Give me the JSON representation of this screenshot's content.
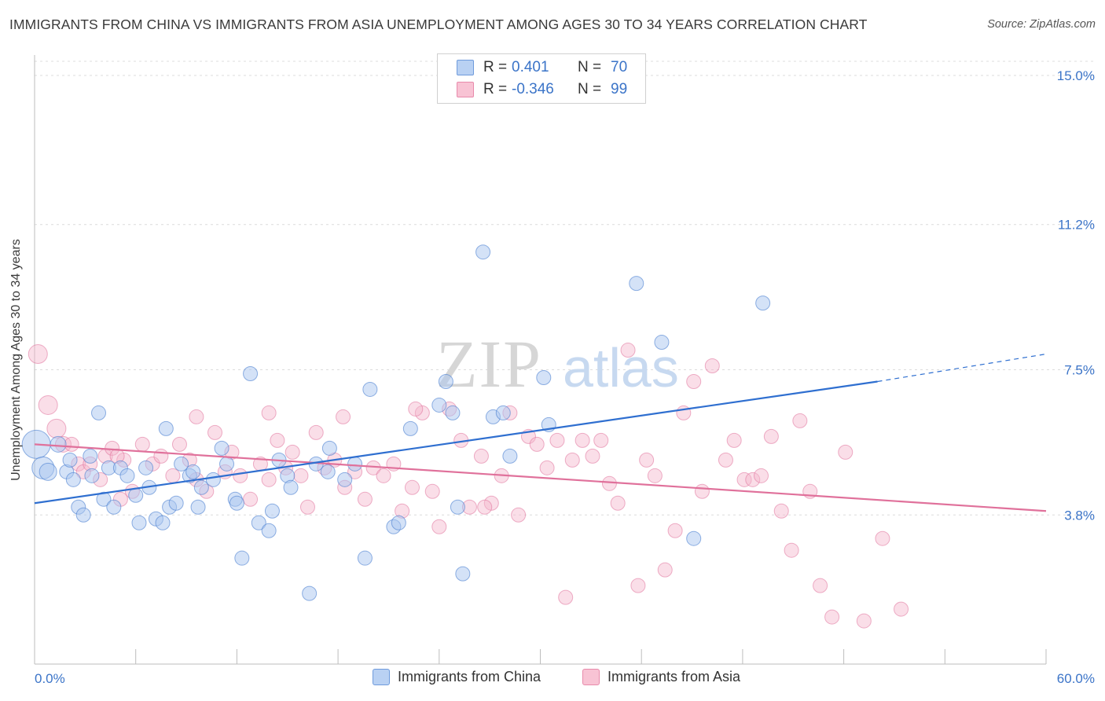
{
  "title": "IMMIGRANTS FROM CHINA VS IMMIGRANTS FROM ASIA UNEMPLOYMENT AMONG AGES 30 TO 34 YEARS CORRELATION CHART",
  "source": "Source: ZipAtlas.com",
  "watermark": {
    "zip": "ZIP",
    "atlas": "atlas"
  },
  "legend": {
    "china": {
      "r_label": "R =",
      "r_value": "0.401",
      "n_label": "N =",
      "n_value": "70"
    },
    "asia": {
      "r_label": "R =",
      "r_value": "-0.346",
      "n_label": "N =",
      "n_value": "99"
    }
  },
  "chart_data": {
    "type": "scatter",
    "title": "IMMIGRANTS FROM CHINA VS IMMIGRANTS FROM ASIA UNEMPLOYMENT AMONG AGES 30 TO 34 YEARS CORRELATION CHART",
    "xlabel": "",
    "ylabel": "Unemployment Among Ages 30 to 34 years",
    "xlim": [
      0,
      60
    ],
    "ylim": [
      0,
      15.4
    ],
    "x_tick_labels": [
      "0.0%",
      "60.0%"
    ],
    "y_ticks": [
      3.8,
      7.5,
      11.2,
      15.0
    ],
    "y_tick_labels": [
      "3.8%",
      "7.5%",
      "11.2%",
      "15.0%"
    ],
    "colors": {
      "china": "#4a7fd0",
      "china_fill": "#a9c6ef",
      "asia": "#e0719b",
      "asia_fill": "#f5b6cb"
    },
    "series": [
      {
        "name": "Immigrants from China",
        "r": 0.401,
        "n": 70,
        "trend": {
          "x0": 0,
          "y0": 4.1,
          "x1": 50,
          "y1": 7.2,
          "dash_x1": 60,
          "dash_y1": 7.9
        },
        "points": [
          [
            0.1,
            5.6,
            18
          ],
          [
            0.5,
            5.0,
            14
          ],
          [
            0.8,
            4.9,
            11
          ],
          [
            1.4,
            5.6,
            10
          ],
          [
            1.9,
            4.9,
            9
          ],
          [
            2.1,
            5.2,
            9
          ],
          [
            2.3,
            4.7,
            9
          ],
          [
            2.6,
            4.0,
            9
          ],
          [
            3.8,
            6.4,
            9
          ],
          [
            2.9,
            3.8,
            9
          ],
          [
            3.4,
            4.8,
            9
          ],
          [
            4.1,
            4.2,
            9
          ],
          [
            4.4,
            5.0,
            9
          ],
          [
            4.7,
            4.0,
            9
          ],
          [
            5.1,
            5.0,
            9
          ],
          [
            5.5,
            4.8,
            9
          ],
          [
            6.0,
            4.3,
            9
          ],
          [
            6.2,
            3.6,
            9
          ],
          [
            6.6,
            5.0,
            9
          ],
          [
            6.8,
            4.5,
            9
          ],
          [
            7.2,
            3.7,
            9
          ],
          [
            7.6,
            3.6,
            9
          ],
          [
            7.8,
            6.0,
            9
          ],
          [
            8.0,
            4.0,
            9
          ],
          [
            8.4,
            4.1,
            9
          ],
          [
            8.7,
            5.1,
            9
          ],
          [
            9.2,
            4.8,
            9
          ],
          [
            9.7,
            4.0,
            9
          ],
          [
            9.9,
            4.5,
            9
          ],
          [
            10.6,
            4.7,
            9
          ],
          [
            11.1,
            5.5,
            9
          ],
          [
            11.4,
            5.1,
            9
          ],
          [
            11.9,
            4.2,
            9
          ],
          [
            12.3,
            2.7,
            9
          ],
          [
            12.8,
            7.4,
            9
          ],
          [
            13.3,
            3.6,
            9
          ],
          [
            13.9,
            3.4,
            9
          ],
          [
            14.1,
            3.9,
            9
          ],
          [
            14.5,
            5.2,
            9
          ],
          [
            15.0,
            4.8,
            9
          ],
          [
            15.2,
            4.5,
            9
          ],
          [
            16.3,
            1.8,
            9
          ],
          [
            16.7,
            5.1,
            9
          ],
          [
            17.4,
            4.9,
            9
          ],
          [
            17.5,
            5.5,
            9
          ],
          [
            18.4,
            4.7,
            9
          ],
          [
            19.0,
            5.1,
            9
          ],
          [
            19.6,
            2.7,
            9
          ],
          [
            19.9,
            7.0,
            9
          ],
          [
            21.3,
            3.5,
            9
          ],
          [
            21.6,
            3.6,
            9
          ],
          [
            24.0,
            6.6,
            9
          ],
          [
            24.4,
            7.2,
            9
          ],
          [
            24.8,
            6.4,
            9
          ],
          [
            25.1,
            4.0,
            9
          ],
          [
            25.4,
            2.3,
            9
          ],
          [
            26.6,
            10.5,
            9
          ],
          [
            27.2,
            6.3,
            9
          ],
          [
            27.8,
            6.4,
            9
          ],
          [
            28.2,
            5.3,
            9
          ],
          [
            30.2,
            7.3,
            9
          ],
          [
            30.5,
            6.1,
            9
          ],
          [
            35.7,
            9.7,
            9
          ],
          [
            37.2,
            8.2,
            9
          ],
          [
            39.1,
            3.2,
            9
          ],
          [
            43.2,
            9.2,
            9
          ],
          [
            22.3,
            6.0,
            9
          ],
          [
            9.4,
            4.9,
            9
          ],
          [
            3.3,
            5.3,
            9
          ],
          [
            12.0,
            4.1,
            9
          ]
        ]
      },
      {
        "name": "Immigrants from Asia",
        "r": -0.346,
        "n": 99,
        "trend": {
          "x0": 0,
          "y0": 5.6,
          "x1": 60,
          "y1": 3.9
        },
        "points": [
          [
            0.2,
            7.9,
            12
          ],
          [
            0.8,
            6.6,
            12
          ],
          [
            1.3,
            6.0,
            12
          ],
          [
            1.7,
            5.6,
            10
          ],
          [
            2.2,
            5.6,
            9
          ],
          [
            2.6,
            5.1,
            9
          ],
          [
            2.9,
            4.9,
            9
          ],
          [
            3.3,
            5.1,
            9
          ],
          [
            3.9,
            4.7,
            9
          ],
          [
            4.2,
            5.3,
            9
          ],
          [
            4.6,
            5.5,
            9
          ],
          [
            5.1,
            4.2,
            9
          ],
          [
            5.3,
            5.2,
            9
          ],
          [
            5.8,
            4.4,
            9
          ],
          [
            6.4,
            5.6,
            9
          ],
          [
            7.0,
            5.1,
            9
          ],
          [
            7.5,
            5.3,
            9
          ],
          [
            8.2,
            4.8,
            9
          ],
          [
            8.6,
            5.6,
            9
          ],
          [
            9.2,
            5.2,
            9
          ],
          [
            9.6,
            4.7,
            9
          ],
          [
            10.2,
            4.4,
            9
          ],
          [
            10.7,
            5.9,
            9
          ],
          [
            11.3,
            4.9,
            9
          ],
          [
            11.7,
            5.4,
            9
          ],
          [
            12.2,
            4.8,
            9
          ],
          [
            12.8,
            4.2,
            9
          ],
          [
            13.4,
            5.1,
            9
          ],
          [
            13.9,
            4.7,
            9
          ],
          [
            14.4,
            5.7,
            9
          ],
          [
            14.9,
            5.0,
            9
          ],
          [
            15.3,
            5.4,
            9
          ],
          [
            15.8,
            4.8,
            9
          ],
          [
            16.2,
            4.0,
            9
          ],
          [
            16.7,
            5.9,
            9
          ],
          [
            17.2,
            5.0,
            9
          ],
          [
            17.8,
            5.2,
            9
          ],
          [
            18.4,
            4.5,
            9
          ],
          [
            19.0,
            4.9,
            9
          ],
          [
            19.6,
            4.2,
            9
          ],
          [
            20.1,
            5.0,
            9
          ],
          [
            20.7,
            4.8,
            9
          ],
          [
            21.3,
            5.1,
            9
          ],
          [
            21.8,
            3.9,
            9
          ],
          [
            22.4,
            4.5,
            9
          ],
          [
            23.0,
            6.4,
            9
          ],
          [
            23.6,
            4.4,
            9
          ],
          [
            24.0,
            3.5,
            9
          ],
          [
            24.6,
            6.5,
            9
          ],
          [
            25.3,
            5.7,
            9
          ],
          [
            25.8,
            4.0,
            9
          ],
          [
            26.5,
            5.3,
            9
          ],
          [
            27.1,
            4.1,
            9
          ],
          [
            27.7,
            4.8,
            9
          ],
          [
            28.2,
            6.4,
            9
          ],
          [
            28.7,
            3.8,
            9
          ],
          [
            29.3,
            5.8,
            9
          ],
          [
            29.8,
            5.6,
            9
          ],
          [
            30.4,
            5.0,
            9
          ],
          [
            31.0,
            5.7,
            9
          ],
          [
            31.5,
            1.7,
            9
          ],
          [
            31.9,
            5.2,
            9
          ],
          [
            32.5,
            5.7,
            9
          ],
          [
            33.1,
            5.3,
            9
          ],
          [
            33.6,
            5.7,
            9
          ],
          [
            34.1,
            4.6,
            9
          ],
          [
            34.6,
            4.1,
            9
          ],
          [
            35.2,
            8.0,
            9
          ],
          [
            35.8,
            2.0,
            9
          ],
          [
            36.3,
            5.2,
            9
          ],
          [
            36.8,
            4.8,
            9
          ],
          [
            37.4,
            2.4,
            9
          ],
          [
            38.0,
            3.4,
            9
          ],
          [
            38.5,
            6.4,
            9
          ],
          [
            39.1,
            7.2,
            9
          ],
          [
            39.6,
            4.4,
            9
          ],
          [
            40.2,
            7.6,
            9
          ],
          [
            41.0,
            5.2,
            9
          ],
          [
            41.5,
            5.7,
            9
          ],
          [
            42.1,
            4.7,
            9
          ],
          [
            42.6,
            4.7,
            9
          ],
          [
            43.1,
            4.8,
            9
          ],
          [
            43.7,
            5.8,
            9
          ],
          [
            44.3,
            3.9,
            9
          ],
          [
            44.9,
            2.9,
            9
          ],
          [
            45.4,
            6.2,
            9
          ],
          [
            46.0,
            4.4,
            9
          ],
          [
            46.6,
            2.0,
            9
          ],
          [
            47.3,
            1.2,
            9
          ],
          [
            48.1,
            5.4,
            9
          ],
          [
            49.2,
            1.1,
            9
          ],
          [
            50.3,
            3.2,
            9
          ],
          [
            51.4,
            1.4,
            9
          ],
          [
            26.7,
            4.0,
            9
          ],
          [
            22.6,
            6.5,
            9
          ],
          [
            18.3,
            6.3,
            9
          ],
          [
            13.9,
            6.4,
            9
          ],
          [
            9.6,
            6.3,
            9
          ],
          [
            4.9,
            5.3,
            9
          ]
        ]
      }
    ]
  },
  "bottom_legend": {
    "china_label": "Immigrants from China",
    "asia_label": "Immigrants from Asia"
  }
}
